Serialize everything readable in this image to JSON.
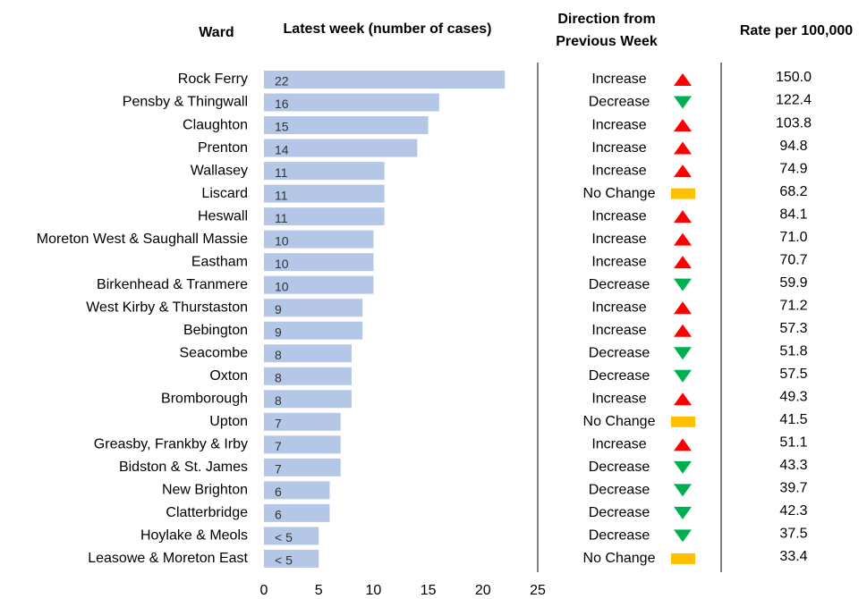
{
  "chart_data": {
    "type": "bar",
    "orientation": "horizontal",
    "headers": {
      "ward": "Ward",
      "cases": "Latest week (number of cases)",
      "direction": [
        "Direction from",
        "Previous Week"
      ],
      "rate": "Rate per 100,000"
    },
    "categories": [
      "Rock Ferry",
      "Pensby & Thingwall",
      "Claughton",
      "Prenton",
      "Wallasey",
      "Liscard",
      "Heswall",
      "Moreton West & Saughall Massie",
      "Eastham",
      "Birkenhead & Tranmere",
      "West Kirby & Thurstaston",
      "Bebington",
      "Seacombe",
      "Oxton",
      "Bromborough",
      "Upton",
      "Greasby, Frankby & Irby",
      "Bidston & St. James",
      "New Brighton",
      "Clatterbridge",
      "Hoylake & Meols",
      "Leasowe & Moreton East"
    ],
    "values": [
      22,
      16,
      15,
      14,
      11,
      11,
      11,
      10,
      10,
      10,
      9,
      9,
      8,
      8,
      8,
      7,
      7,
      7,
      6,
      6,
      5,
      5
    ],
    "value_labels": [
      "22",
      "16",
      "15",
      "14",
      "11",
      "11",
      "11",
      "10",
      "10",
      "10",
      "9",
      "9",
      "8",
      "8",
      "8",
      "7",
      "7",
      "7",
      "6",
      "6",
      "< 5",
      "< 5"
    ],
    "color": "#b4c7e7",
    "xlim": [
      0,
      25
    ],
    "xticks": [
      0,
      5,
      10,
      15,
      20,
      25
    ],
    "direction": [
      "Increase",
      "Decrease",
      "Increase",
      "Increase",
      "Increase",
      "No Change",
      "Increase",
      "Increase",
      "Increase",
      "Decrease",
      "Increase",
      "Increase",
      "Decrease",
      "Decrease",
      "Increase",
      "No Change",
      "Increase",
      "Decrease",
      "Decrease",
      "Decrease",
      "Decrease",
      "No Change"
    ],
    "icons": {
      "Increase": {
        "shape": "up",
        "color": "#ff0000"
      },
      "Decrease": {
        "shape": "down",
        "color": "#00b050"
      },
      "No Change": {
        "shape": "bar",
        "color": "#ffc000"
      }
    },
    "rate": [
      "150.0",
      "122.4",
      "103.8",
      "94.8",
      "74.9",
      "68.2",
      "84.1",
      "71.0",
      "70.7",
      "59.9",
      "71.2",
      "57.3",
      "51.8",
      "57.5",
      "49.3",
      "41.5",
      "51.1",
      "43.3",
      "39.7",
      "42.3",
      "37.5",
      "33.4"
    ]
  }
}
